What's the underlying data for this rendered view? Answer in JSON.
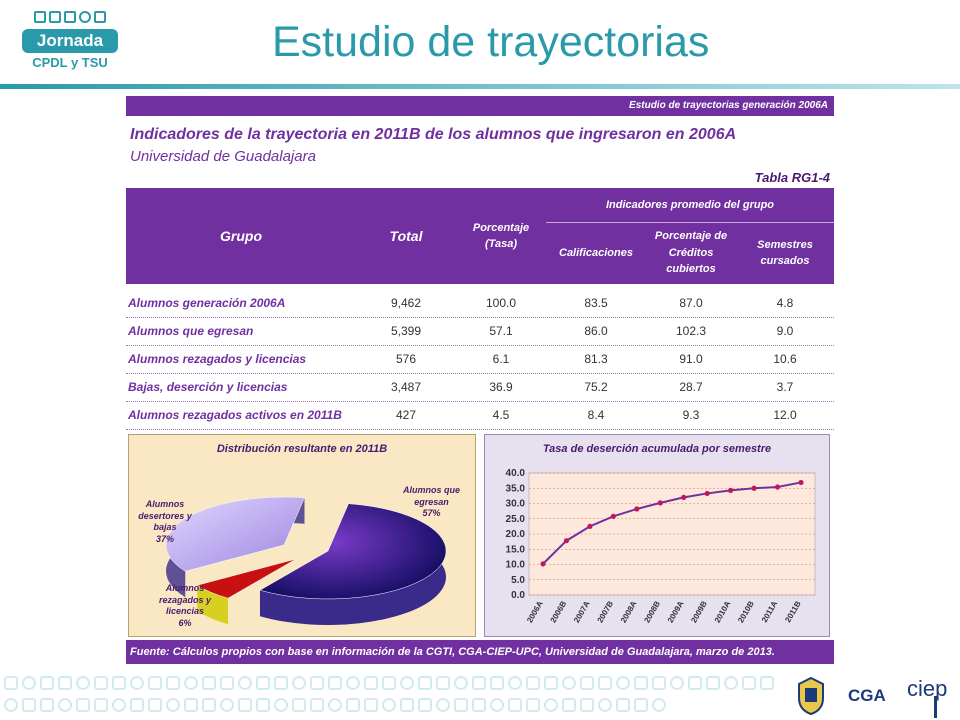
{
  "logo": {
    "pill_text": "Jornada",
    "sub_text": "CPDL y TSU"
  },
  "slide_title": "Estudio de trayectorias",
  "panel": {
    "header": "Estudio de trayectorias generación 2006A",
    "indicators_title": "Indicadores de la trayectoria en 2011B de los alumnos que ingresaron en 2006A",
    "university": "Universidad de Guadalajara",
    "table_label": "Tabla RG1-4",
    "columns": {
      "grupo": "Grupo",
      "total": "Total",
      "porcentaje": "Porcentaje",
      "tasa": "(Tasa)",
      "promedio_group": "Indicadores promedio del grupo",
      "calificaciones": "Calificaciones",
      "creditos_1": "Porcentaje de",
      "creditos_2": "Créditos",
      "creditos_3": "cubiertos",
      "semestres_1": "Semestres",
      "semestres_2": "cursados"
    },
    "rows": [
      {
        "grupo": "Alumnos generación 2006A",
        "total": "9,462",
        "porcentaje": "100.0",
        "calificaciones": "83.5",
        "creditos": "87.0",
        "semestres": "4.8"
      },
      {
        "grupo": "Alumnos que egresan",
        "total": "5,399",
        "porcentaje": "57.1",
        "calificaciones": "86.0",
        "creditos": "102.3",
        "semestres": "9.0"
      },
      {
        "grupo": "Alumnos rezagados y licencias",
        "total": "576",
        "porcentaje": "6.1",
        "calificaciones": "81.3",
        "creditos": "91.0",
        "semestres": "10.6"
      },
      {
        "grupo": "Bajas, deserción y licencias",
        "total": "3,487",
        "porcentaje": "36.9",
        "calificaciones": "75.2",
        "creditos": "28.7",
        "semestres": "3.7"
      },
      {
        "grupo": "Alumnos rezagados activos en 2011B",
        "total": "427",
        "porcentaje": "4.5",
        "calificaciones": "8.4",
        "creditos": "9.3",
        "semestres": "12.0"
      }
    ],
    "fuente": "Fuente: Cálculos propios con base en información de la CGTI, CGA-CIEP-UPC, Universidad de Guadalajara, marzo de 2013."
  },
  "chart_data": [
    {
      "type": "pie",
      "title": "Distribución resultante en 2011B",
      "slices": [
        {
          "label_1": "Alumnos que",
          "label_2": "egresan",
          "percent_label": "57%",
          "value": 57,
          "color": "#1a1a7a"
        },
        {
          "label_1": "Alumnos",
          "label_2": "rezagados y",
          "label_3": "licencias",
          "percent_label": "6%",
          "value": 6,
          "color": "#c81010"
        },
        {
          "label_1": "Alumnos",
          "label_2": "desertores y",
          "label_3": "bajas",
          "percent_label": "37%",
          "value": 37,
          "color": "#b8b8f0"
        }
      ]
    },
    {
      "type": "line",
      "title": "Tasa de deserción acumulada por semestre",
      "categories": [
        "2006A",
        "2006B",
        "2007A",
        "2007B",
        "2008A",
        "2008B",
        "2009A",
        "2009B",
        "2010A",
        "2010B",
        "2011A",
        "2011B"
      ],
      "values": [
        10.2,
        17.8,
        22.5,
        25.8,
        28.2,
        30.2,
        32.0,
        33.3,
        34.3,
        35.0,
        35.4,
        36.9
      ],
      "yticks": [
        "0.0",
        "5.0",
        "10.0",
        "15.0",
        "20.0",
        "25.0",
        "30.0",
        "35.0",
        "40.0"
      ],
      "ylim": [
        0,
        40
      ],
      "line_color": "#7030a0",
      "marker_color": "#c0185a",
      "grid": true
    }
  ],
  "footer": {
    "cga": "CGA",
    "ciep": "ciep"
  }
}
